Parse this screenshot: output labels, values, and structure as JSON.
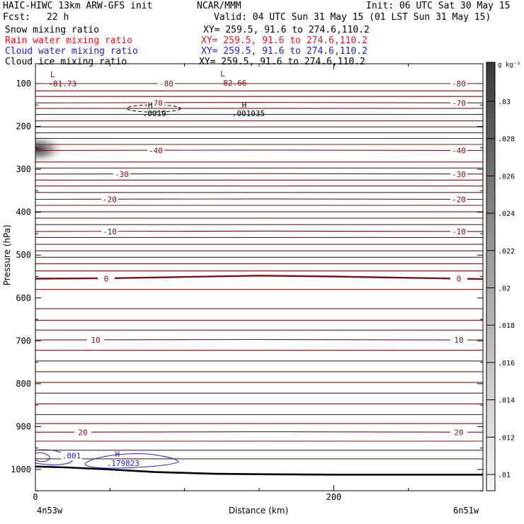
{
  "header": {
    "model_title": "HAIC-HIWC 13km ARW-GFS init",
    "center": "NCAR/MMM",
    "init_time": "Init: 06 UTC Sat 30 May 15",
    "fcst_label": "Fcst:",
    "fcst_hours": "22 h",
    "valid_time": "Valid: 04 UTC Sun 31 May 15 (01 LST Sun 31 May 15)"
  },
  "fields": [
    {
      "name": "Snow mixing ratio",
      "xy": "XY= 259.5, 91.6 to 274.6,110.2",
      "color": "#000000"
    },
    {
      "name": "Rain water mixing ratio",
      "xy": "XY= 259.5, 91.6 to 274.6,110.2",
      "color": "#e8141e"
    },
    {
      "name": "Cloud water mixing ratio",
      "xy": "XY= 259.5, 91.6 to 274.6,110.2",
      "color": "#1e1ed2"
    },
    {
      "name": "Cloud ice mixing ratio",
      "xy": "XY= 259.5, 91.6 to 274.6,110.2",
      "color": "#000000"
    }
  ],
  "colors": {
    "temperature_contour": "#7a1010",
    "cloud_water_contour": "#1e1ed2",
    "terrain": "#000000",
    "frame": "#000000"
  },
  "chart_data": {
    "type": "cross-section",
    "x_axis": {
      "label": "Distance (km)",
      "range": [
        0,
        300
      ],
      "ticks": [
        0,
        200
      ],
      "left_location": "4n53w",
      "right_location": "6n51w"
    },
    "y_axis": {
      "label": "Pressure (hPa)",
      "range": [
        1050,
        50
      ],
      "ticks": [
        100,
        200,
        300,
        400,
        500,
        600,
        700,
        800,
        900,
        1000
      ]
    },
    "temperature_contours": {
      "labeled_levels": [
        -80,
        -70,
        -40,
        -30,
        -20,
        -10,
        0,
        10,
        20
      ],
      "lines": [
        {
          "label": "-80",
          "x": [
            0,
            150,
            300
          ],
          "p": [
            100,
            100,
            100
          ]
        },
        {
          "label": "-70",
          "x": [
            0,
            150,
            300
          ],
          "p": [
            145,
            144,
            145
          ]
        },
        {
          "label": "-40",
          "x": [
            0,
            150,
            300
          ],
          "p": [
            256,
            255,
            256
          ]
        },
        {
          "label": "-30",
          "x": [
            0,
            150,
            300
          ],
          "p": [
            311,
            310,
            311
          ]
        },
        {
          "label": "-20",
          "x": [
            0,
            150,
            300
          ],
          "p": [
            370,
            369,
            370
          ]
        },
        {
          "label": "-10",
          "x": [
            0,
            150,
            300
          ],
          "p": [
            445,
            444,
            445
          ]
        },
        {
          "label": "0",
          "x": [
            0,
            50,
            100,
            150,
            200,
            250,
            300
          ],
          "p": [
            555,
            554,
            551,
            548,
            550,
            553,
            556
          ]
        },
        {
          "label": "10",
          "x": [
            0,
            150,
            300
          ],
          "p": [
            698,
            697,
            698
          ]
        },
        {
          "label": "20",
          "x": [
            0,
            150,
            300
          ],
          "p": [
            913,
            912,
            913
          ]
        }
      ],
      "unlabeled_levels_p": [
        117,
        130,
        158,
        172,
        187,
        201,
        215,
        228,
        242,
        283,
        297,
        325,
        339,
        354,
        384,
        399,
        414,
        429,
        459,
        475,
        490,
        505,
        520,
        537,
        580,
        625,
        652,
        675,
        722,
        747,
        772,
        797,
        822,
        847,
        872,
        893,
        934,
        955,
        975
      ],
      "extrema": [
        {
          "type": "L",
          "value": "-81.73",
          "x": 3,
          "p": 97
        },
        {
          "type": "L",
          "value": "-82.66",
          "x": 117,
          "p": 95
        }
      ]
    },
    "cloud_ice": {
      "maxima": [
        {
          "type": "H",
          "value": ".0019",
          "x": 77,
          "p": 168
        },
        {
          "type": "H",
          "value": ".001035",
          "x": 140,
          "p": 168
        }
      ]
    },
    "cloud_water": {
      "contour_label": ".001",
      "maximum": {
        "type": "H",
        "value": ".179823",
        "x": 55,
        "p": 982
      }
    },
    "terrain_surface": {
      "x": [
        0,
        20,
        50,
        80,
        100,
        120,
        150,
        200,
        250,
        300
      ],
      "p": [
        993,
        995,
        1000,
        1006,
        1008,
        1010,
        1011,
        1012,
        1012,
        1012
      ]
    },
    "colorbar": {
      "unit": "g kg⁻¹",
      "ticks": [
        ".03",
        ".028",
        ".026",
        ".024",
        ".022",
        ".02",
        ".018",
        ".016",
        ".014",
        ".012",
        ".01"
      ]
    }
  }
}
